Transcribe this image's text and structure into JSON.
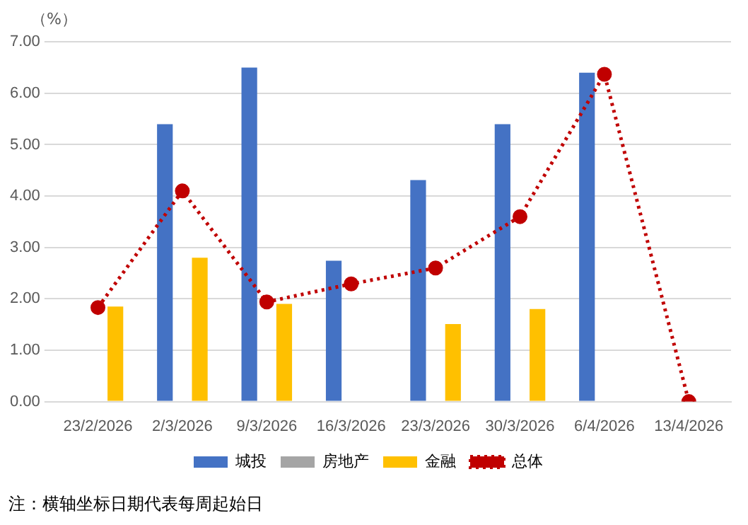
{
  "chart_data": {
    "type": "bar",
    "ylabel": "（%）",
    "categories": [
      "23/2/2026",
      "2/3/2026",
      "9/3/2026",
      "16/3/2026",
      "23/3/2026",
      "30/3/2026",
      "6/4/2026",
      "13/4/2026"
    ],
    "series": [
      {
        "name": "城投",
        "color": "#4472c4",
        "values": [
          null,
          5.4,
          6.5,
          2.74,
          4.31,
          5.4,
          6.4,
          null
        ]
      },
      {
        "name": "房地产",
        "color": "#a5a5a5",
        "values": [
          null,
          null,
          null,
          null,
          null,
          null,
          null,
          null
        ]
      },
      {
        "name": "金融",
        "color": "#ffc000",
        "values": [
          1.85,
          2.8,
          1.9,
          null,
          1.51,
          1.8,
          null,
          null
        ]
      },
      {
        "name": "总体",
        "type": "line",
        "color": "#c00000",
        "line_style": "dotted",
        "marker": "circle",
        "values": [
          1.83,
          4.1,
          1.94,
          2.29,
          2.6,
          3.6,
          6.37,
          0
        ]
      }
    ],
    "ylim": [
      0,
      7
    ],
    "yticks": [
      {
        "value": 0,
        "label": "0.00"
      },
      {
        "value": 1,
        "label": "1.00"
      },
      {
        "value": 2,
        "label": "2.00"
      },
      {
        "value": 3,
        "label": "3.00"
      },
      {
        "value": 4,
        "label": "4.00"
      },
      {
        "value": 5,
        "label": "5.00"
      },
      {
        "value": 6,
        "label": "6.00"
      },
      {
        "value": 7,
        "label": "7.00"
      }
    ],
    "grid": "y",
    "legend": "bottom",
    "annotations": [
      "注：横轴坐标日期代表每周起始日"
    ]
  }
}
